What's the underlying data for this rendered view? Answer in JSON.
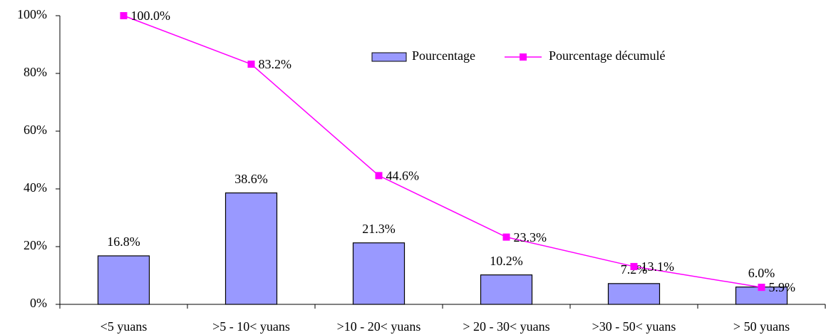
{
  "chart_data": {
    "type": "bar",
    "categories": [
      "<5 yuans",
      ">5 - 10< yuans",
      ">10 - 20< yuans",
      "> 20 - 30< yuans",
      ">30 - 50< yuans",
      "> 50 yuans"
    ],
    "series": [
      {
        "name": "Pourcentage",
        "type": "bar",
        "color": "#9999ff",
        "values": [
          16.8,
          38.6,
          21.3,
          10.2,
          7.2,
          6.0
        ],
        "value_labels": [
          "16.8%",
          "38.6%",
          "21.3%",
          "10.2%",
          "7.2%",
          "6.0%"
        ]
      },
      {
        "name": "Pourcentage décumulé",
        "type": "line",
        "color": "#ff00ff",
        "values": [
          100.0,
          83.2,
          44.6,
          23.3,
          13.1,
          5.9
        ],
        "value_labels": [
          "100.0%",
          "83.2%",
          "44.6%",
          "23.3%",
          "13.1%",
          "5.9%"
        ]
      }
    ],
    "ylim": [
      0,
      100
    ],
    "yticks": [
      {
        "value": 0,
        "label": "0%"
      },
      {
        "value": 20,
        "label": "20%"
      },
      {
        "value": 40,
        "label": "40%"
      },
      {
        "value": 60,
        "label": "60%"
      },
      {
        "value": 80,
        "label": "80%"
      },
      {
        "value": 100,
        "label": "100%"
      }
    ],
    "legend": "top"
  }
}
